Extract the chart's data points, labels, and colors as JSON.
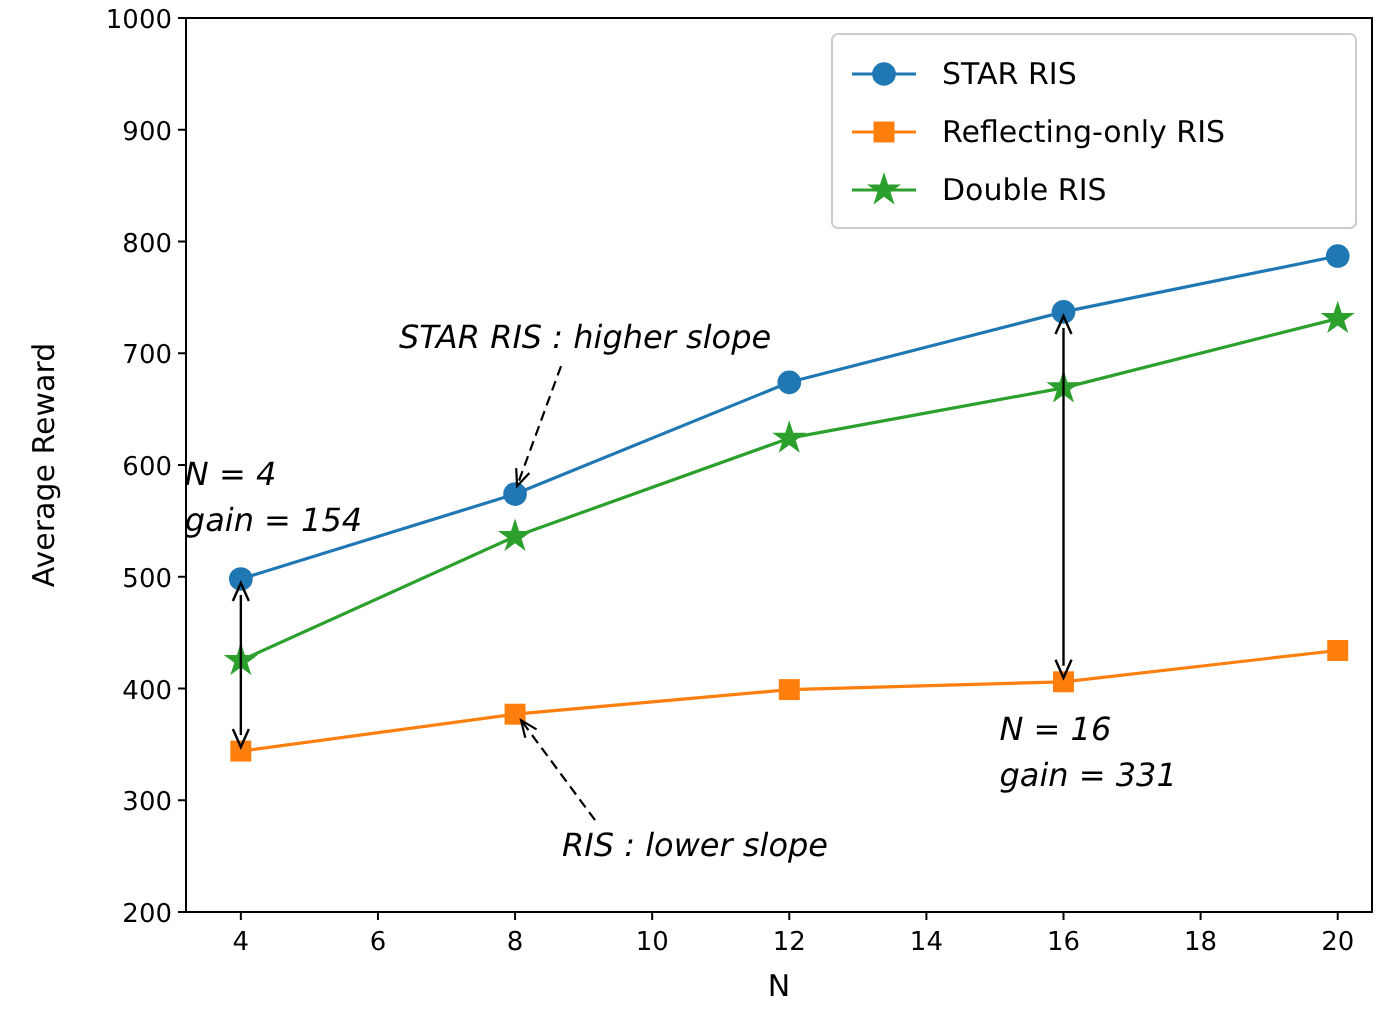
{
  "chart_data": {
    "type": "line",
    "xlabel": "N",
    "ylabel": "Average Reward",
    "x": [
      4,
      8,
      12,
      16,
      20
    ],
    "series": [
      {
        "name": "STAR RIS",
        "color": "#1f77b4",
        "marker": "circle",
        "values": [
          498,
          574,
          674,
          737,
          787
        ]
      },
      {
        "name": "Reflecting-only RIS",
        "color": "#ff7f0e",
        "marker": "square",
        "values": [
          344,
          377,
          399,
          406,
          434
        ]
      },
      {
        "name": "Double RIS",
        "color": "#2ca02c",
        "marker": "star",
        "values": [
          425,
          536,
          624,
          669,
          731
        ]
      }
    ],
    "xlim": [
      3.2,
      20.5
    ],
    "ylim": [
      200,
      1000
    ],
    "xticks": [
      4,
      6,
      8,
      10,
      12,
      14,
      16,
      18,
      20
    ],
    "yticks": [
      200,
      300,
      400,
      500,
      600,
      700,
      800,
      900,
      1000
    ],
    "grid": false,
    "legend": "top right",
    "line_style": "solid",
    "annotations": [
      {
        "text": "N = 4\ngain = 154",
        "x": 4,
        "y": 498
      },
      {
        "text": "STAR RIS : higher slope",
        "x": 8,
        "y": 574
      },
      {
        "text": "RIS : lower slope",
        "x": 8,
        "y": 377
      },
      {
        "text": "N = 16\ngain = 331",
        "x": 16,
        "y": 406
      }
    ]
  }
}
